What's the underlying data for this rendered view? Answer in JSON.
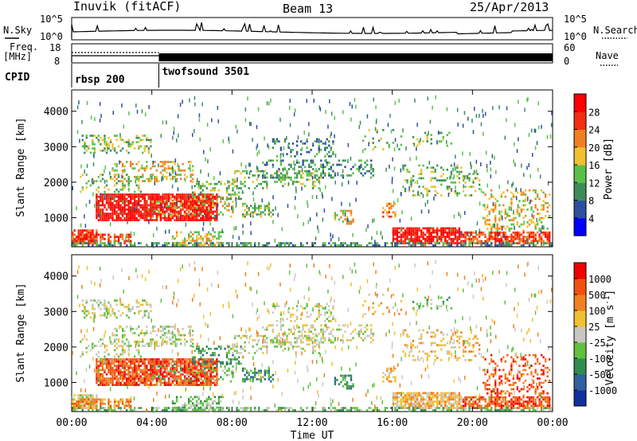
{
  "header": {
    "title": "Inuvik (fitACF)",
    "beam": "Beam 13",
    "date": "25/Apr/2013"
  },
  "chart_data": [
    {
      "type": "line",
      "panel": "noise",
      "left_label": "N.Sky",
      "right_label": "N.Search",
      "left_ticks": [
        "10^5",
        "10^0"
      ],
      "right_ticks": [
        "10^5",
        "10^0"
      ],
      "series": [
        {
          "name": "N.Sky",
          "style": "solid",
          "approx_log10": [
            0.5,
            0.6,
            0.7,
            0.7,
            0.6,
            0.5,
            0.5,
            0.4,
            0.3,
            0.35,
            0.4,
            0.45,
            0.5
          ]
        },
        {
          "name": "N.Search",
          "style": "dotted"
        }
      ]
    },
    {
      "type": "line",
      "panel": "frequency",
      "left_label_top": "Freq.",
      "left_label_bottom": "[MHz]",
      "right_label": "Nave",
      "left_ticks": [
        "18",
        "8"
      ],
      "right_ticks": [
        "60",
        "0"
      ],
      "series": [
        {
          "name": "Freq",
          "style": "solid",
          "approx_mhz": 11
        },
        {
          "name": "Nave",
          "style": "dotted"
        }
      ]
    },
    {
      "type": "segments",
      "panel": "cpid",
      "label": "CPID",
      "segments": [
        {
          "name": "rbsp 200",
          "start_hour": 0.0,
          "end_hour": 4.35
        },
        {
          "name": "twofsound 3501",
          "start_hour": 4.35,
          "end_hour": 24.0
        }
      ]
    },
    {
      "type": "heatmap",
      "panel": "power",
      "ylabel": "Slant Range [km]",
      "y_ticks": [
        1000,
        2000,
        3000,
        4000
      ],
      "ylim": [
        180,
        4600
      ],
      "xlim_hours": [
        0,
        24
      ],
      "colorbar": {
        "label": "Power [dB]",
        "ticks": [
          "4",
          "8",
          "12",
          "16",
          "20",
          "24",
          "28"
        ],
        "colors": [
          "#0000ff",
          "#2c4fa0",
          "#3c8c5a",
          "#5ac04a",
          "#f0c030",
          "#f08020",
          "#f03010",
          "#ff0000"
        ]
      }
    },
    {
      "type": "heatmap",
      "panel": "velocity",
      "ylabel": "Slant Range [km]",
      "xlabel": "Time UT",
      "x_ticks": [
        "00:00",
        "04:00",
        "08:00",
        "12:00",
        "16:00",
        "20:00",
        "00:00"
      ],
      "y_ticks": [
        1000,
        2000,
        3000,
        4000
      ],
      "ylim": [
        180,
        4600
      ],
      "xlim_hours": [
        0,
        24
      ],
      "colorbar": {
        "label_main": "Velocity [m s",
        "label_sup": "-1",
        "label_end": "]",
        "ticks": [
          "1000",
          "500",
          "100",
          "25",
          "-25",
          "-100",
          "-500",
          "-1000"
        ],
        "colors": [
          "#1030a0",
          "#3060a0",
          "#308c50",
          "#60c040",
          "#c8c8c0",
          "#f0c030",
          "#f08020",
          "#f05010",
          "#f00000"
        ]
      }
    }
  ]
}
